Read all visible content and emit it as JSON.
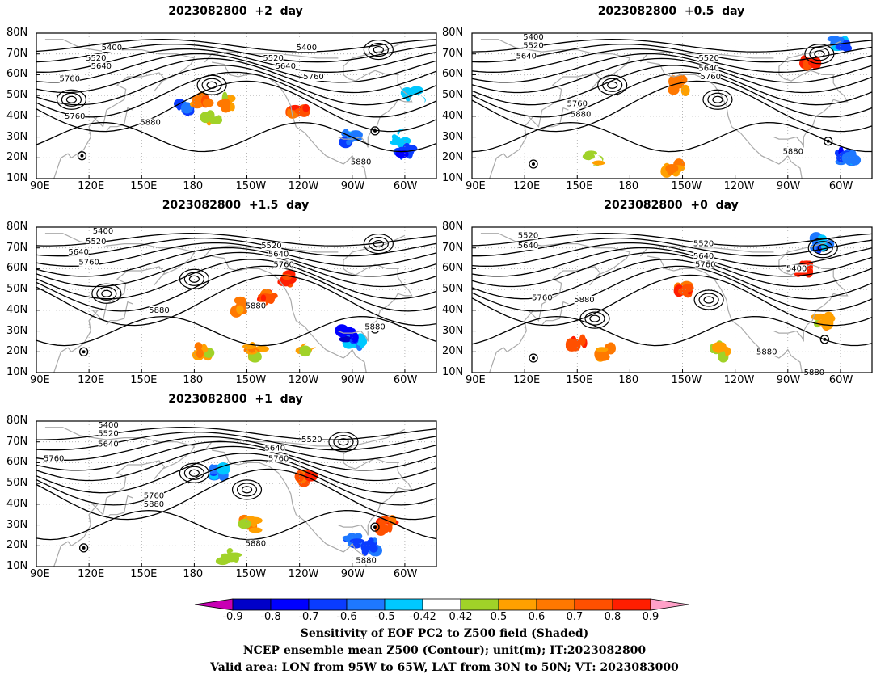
{
  "panels": [
    {
      "id": "p1",
      "title": "2023082800  +2  day"
    },
    {
      "id": "p2",
      "title": "2023082800  +0.5  day"
    },
    {
      "id": "p3",
      "title": "2023082800  +1.5  day"
    },
    {
      "id": "p4",
      "title": "2023082800  +0  day"
    },
    {
      "id": "p5",
      "title": "2023082800  +1  day"
    }
  ],
  "axes": {
    "lon_ticks": [
      {
        "lon": 90,
        "label": "90E"
      },
      {
        "lon": 120,
        "label": "120E"
      },
      {
        "lon": 150,
        "label": "150E"
      },
      {
        "lon": 180,
        "label": "180"
      },
      {
        "lon": 210,
        "label": "150W"
      },
      {
        "lon": 240,
        "label": "120W"
      },
      {
        "lon": 270,
        "label": "90W"
      },
      {
        "lon": 300,
        "label": "60W"
      }
    ],
    "lat_ticks": [
      {
        "lat": 10,
        "label": "10N"
      },
      {
        "lat": 20,
        "label": "20N"
      },
      {
        "lat": 30,
        "label": "30N"
      },
      {
        "lat": 40,
        "label": "40N"
      },
      {
        "lat": 50,
        "label": "50N"
      },
      {
        "lat": 60,
        "label": "60N"
      },
      {
        "lat": 70,
        "label": "70N"
      },
      {
        "lat": 80,
        "label": "80N"
      }
    ],
    "lon_range": [
      90,
      318
    ],
    "lat_range": [
      10,
      80
    ]
  },
  "colorbar": {
    "labels": [
      "-0.9",
      "-0.8",
      "-0.7",
      "-0.6",
      "-0.5",
      "-0.42",
      "0.42",
      "0.5",
      "0.6",
      "0.7",
      "0.8",
      "0.9"
    ],
    "colors": [
      "#0000c8",
      "#0000ff",
      "#0a3cff",
      "#1e78ff",
      "#00c8ff",
      "#ffffff",
      "#a0d228",
      "#ffa000",
      "#ff7800",
      "#ff5000",
      "#ff1e00"
    ],
    "low_color": "#c800b4",
    "high_color": "#ffa0c8"
  },
  "captions": {
    "line1": "Sensitivity of EOF PC2 to Z500 field (Shaded)",
    "line2": "NCEP ensemble mean Z500 (Contour); unit(m); IT:2023082800",
    "line3": "Valid area: LON from 95W to 65W, LAT from 30N to 50N; VT: 2023083000"
  },
  "contour_labels": {
    "p1": [
      "5400",
      "5520",
      "5640",
      "5760",
      "5400",
      "5520",
      "5640",
      "5760",
      "5760",
      "5880",
      "5880"
    ],
    "p2": [
      "5400",
      "5520",
      "5640",
      "5520",
      "5640",
      "5760",
      "5760",
      "5880",
      "5880"
    ],
    "p3": [
      "5400",
      "5520",
      "5640",
      "5760",
      "5520",
      "5640",
      "5760",
      "5880",
      "5880",
      "5880"
    ],
    "p4": [
      "5520",
      "5640",
      "5520",
      "5640",
      "5760",
      "5400",
      "5760",
      "5880",
      "5880",
      "5880"
    ],
    "p5": [
      "5400",
      "5520",
      "5640",
      "5760",
      "5520",
      "5640",
      "5760",
      "5760",
      "5880",
      "5880",
      "5880"
    ]
  }
}
